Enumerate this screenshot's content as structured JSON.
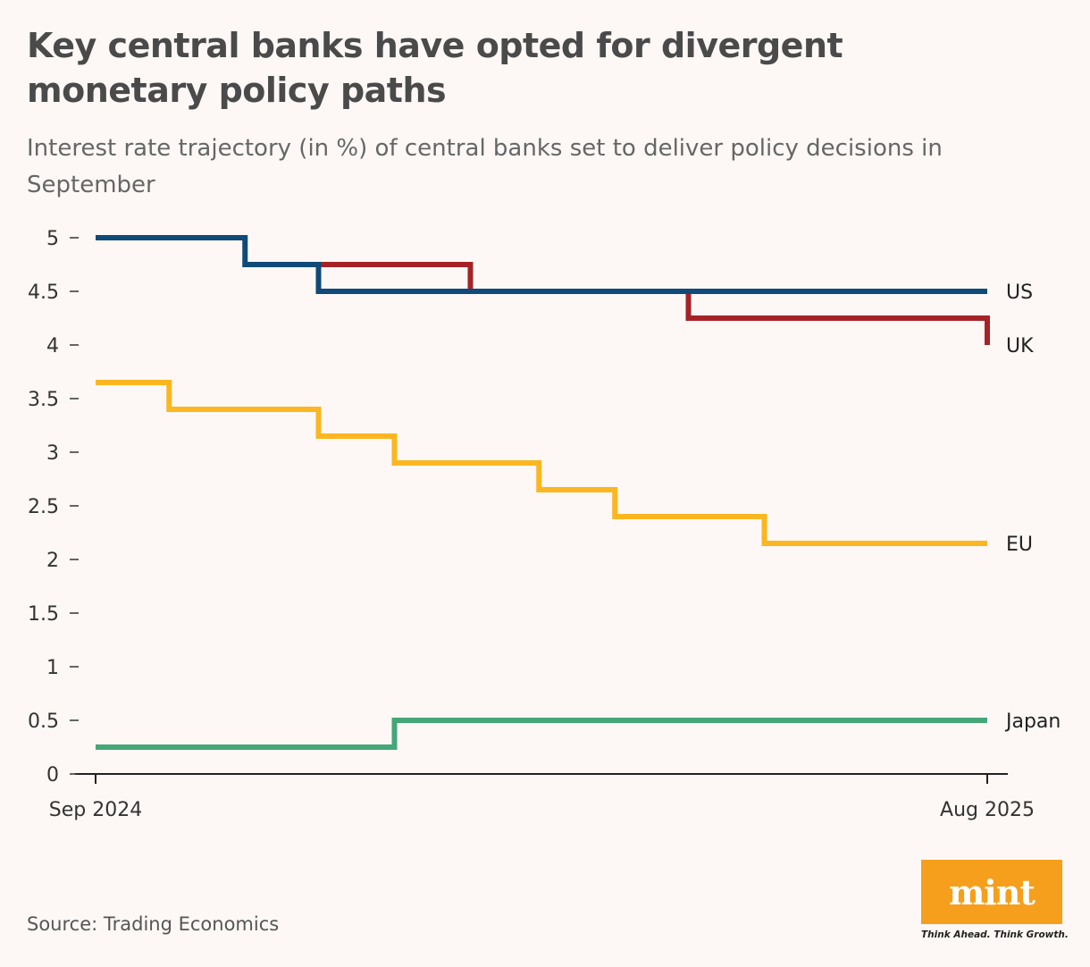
{
  "header": {
    "title": "Key central banks have opted for divergent monetary policy paths",
    "subtitle": "Interest rate trajectory (in %) of central banks set to deliver policy decisions in September"
  },
  "footer": {
    "source": "Source: Trading Economics",
    "logo": "mint",
    "tagline": "Think Ahead. Think Growth."
  },
  "colors": {
    "US": "#0f4a78",
    "UK": "#a52327",
    "EU": "#fbb620",
    "Japan": "#45a678",
    "logo_bg": "#f59f1c"
  },
  "chart_data": {
    "type": "line",
    "step": true,
    "x_tick_labels": [
      "Sep 2024",
      "Aug 2025"
    ],
    "xlim": [
      "2024-09-01",
      "2025-08-31"
    ],
    "ylim": [
      0,
      5
    ],
    "yticks": [
      0,
      0.5,
      1,
      1.5,
      2,
      2.5,
      3,
      3.5,
      4,
      4.5,
      5
    ],
    "ytick_labels": [
      "0",
      "0.5",
      "1",
      "1.5",
      "2",
      "2.5",
      "3",
      "3.5",
      "4",
      "4.5",
      "5"
    ],
    "grid": false,
    "legend": "inline-right",
    "series": [
      {
        "name": "US",
        "points": [
          [
            "2024-09-01",
            5.0
          ],
          [
            "2024-11-01",
            4.75
          ],
          [
            "2024-12-01",
            4.5
          ],
          [
            "2025-08-31",
            4.5
          ]
        ]
      },
      {
        "name": "UK",
        "points": [
          [
            "2024-12-01",
            4.75
          ],
          [
            "2025-02-01",
            4.5
          ],
          [
            "2025-05-01",
            4.25
          ],
          [
            "2025-08-31",
            4.0
          ]
        ]
      },
      {
        "name": "EU",
        "points": [
          [
            "2024-09-01",
            3.65
          ],
          [
            "2024-10-01",
            3.4
          ],
          [
            "2024-12-01",
            3.15
          ],
          [
            "2025-01-01",
            2.9
          ],
          [
            "2025-03-01",
            2.65
          ],
          [
            "2025-04-01",
            2.4
          ],
          [
            "2025-06-01",
            2.15
          ],
          [
            "2025-08-31",
            2.15
          ]
        ]
      },
      {
        "name": "Japan",
        "points": [
          [
            "2024-09-01",
            0.25
          ],
          [
            "2025-01-01",
            0.5
          ],
          [
            "2025-08-31",
            0.5
          ]
        ]
      }
    ]
  }
}
